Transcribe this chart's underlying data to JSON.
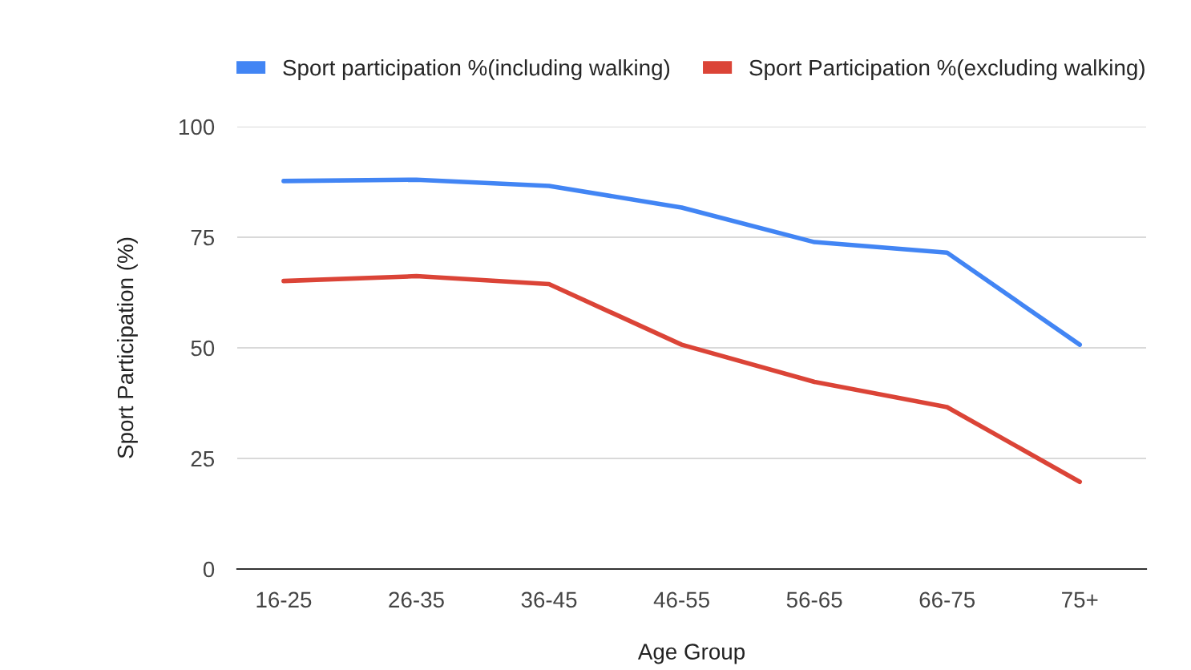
{
  "chart_data": {
    "type": "line",
    "xlabel": "Age Group",
    "ylabel": "Sport Participation (%)",
    "categories": [
      "16-25",
      "26-35",
      "36-45",
      "46-55",
      "56-65",
      "66-75",
      "75+"
    ],
    "series": [
      {
        "name": "Sport participation %(including walking)",
        "color": "#4285f4",
        "values": [
          87.7,
          88,
          86.6,
          81.7,
          73.9,
          71.5,
          50.7
        ]
      },
      {
        "name": "Sport Participation %(excluding walking)",
        "color": "#db4437",
        "values": [
          65.1,
          66.2,
          64.4,
          50.7,
          42.3,
          36.6,
          19.7
        ]
      }
    ],
    "ylim": [
      0,
      100
    ],
    "yticks": [
      0,
      25,
      50,
      75,
      100
    ],
    "grid": "y",
    "legend": "top",
    "marker": "none",
    "line_style": "solid"
  }
}
